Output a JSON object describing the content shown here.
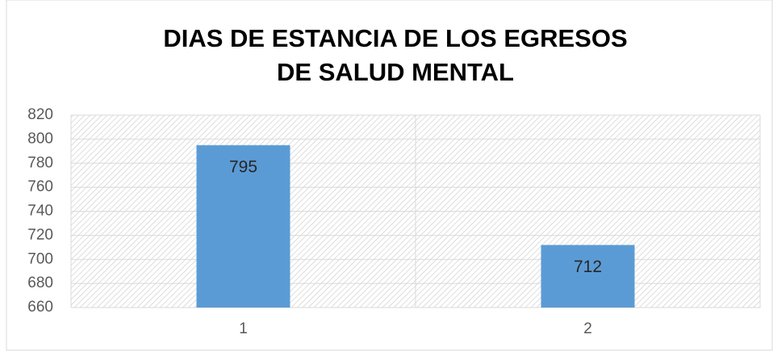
{
  "chart_data": {
    "type": "bar",
    "title": [
      "DIAS DE ESTANCIA DE LOS EGRESOS",
      "DE SALUD MENTAL"
    ],
    "categories": [
      "1",
      "2"
    ],
    "values": [
      795,
      712
    ],
    "color": "#5b9bd5",
    "ylim": [
      660,
      820
    ],
    "yticks": [
      660,
      680,
      700,
      720,
      740,
      760,
      780,
      800,
      820
    ],
    "grid": true
  }
}
